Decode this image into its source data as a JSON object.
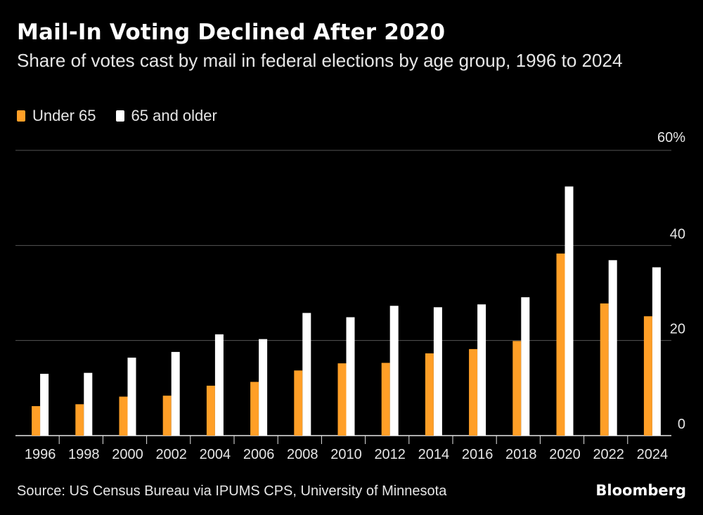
{
  "title": "Mail-In Voting Declined After 2020",
  "subtitle": "Share of votes cast by mail in federal elections by age group, 1996 to 2024",
  "source": "Source: US Census Bureau via IPUMS CPS, University of Minnesota",
  "brand": "Bloomberg",
  "colors": {
    "under65": "#ff9f27",
    "over65": "#ffffff",
    "grid": "#555555",
    "axis": "#e6e6e6"
  },
  "chart_data": {
    "type": "bar",
    "title": "Mail-In Voting Declined After 2020",
    "xlabel": "",
    "ylabel": "",
    "ylim": [
      0,
      60
    ],
    "yticks": [
      0,
      20,
      40,
      60
    ],
    "ytick_labels": [
      "0",
      "20",
      "40",
      "60%"
    ],
    "grid": true,
    "legend_position": "top-left",
    "categories": [
      "1996",
      "1998",
      "2000",
      "2002",
      "2004",
      "2006",
      "2008",
      "2010",
      "2012",
      "2014",
      "2016",
      "2018",
      "2020",
      "2022",
      "2024"
    ],
    "series": [
      {
        "name": "Under 65",
        "color": "#ff9f27",
        "values": [
          6.2,
          6.6,
          8.2,
          8.4,
          10.5,
          11.3,
          13.7,
          15.2,
          15.3,
          17.3,
          18.2,
          19.9,
          38.3,
          27.8,
          25.1
        ]
      },
      {
        "name": "65 and older",
        "color": "#ffffff",
        "values": [
          13.0,
          13.2,
          16.4,
          17.6,
          21.3,
          20.3,
          25.8,
          24.9,
          27.3,
          27.0,
          27.6,
          29.1,
          52.4,
          36.9,
          35.4
        ]
      }
    ]
  }
}
